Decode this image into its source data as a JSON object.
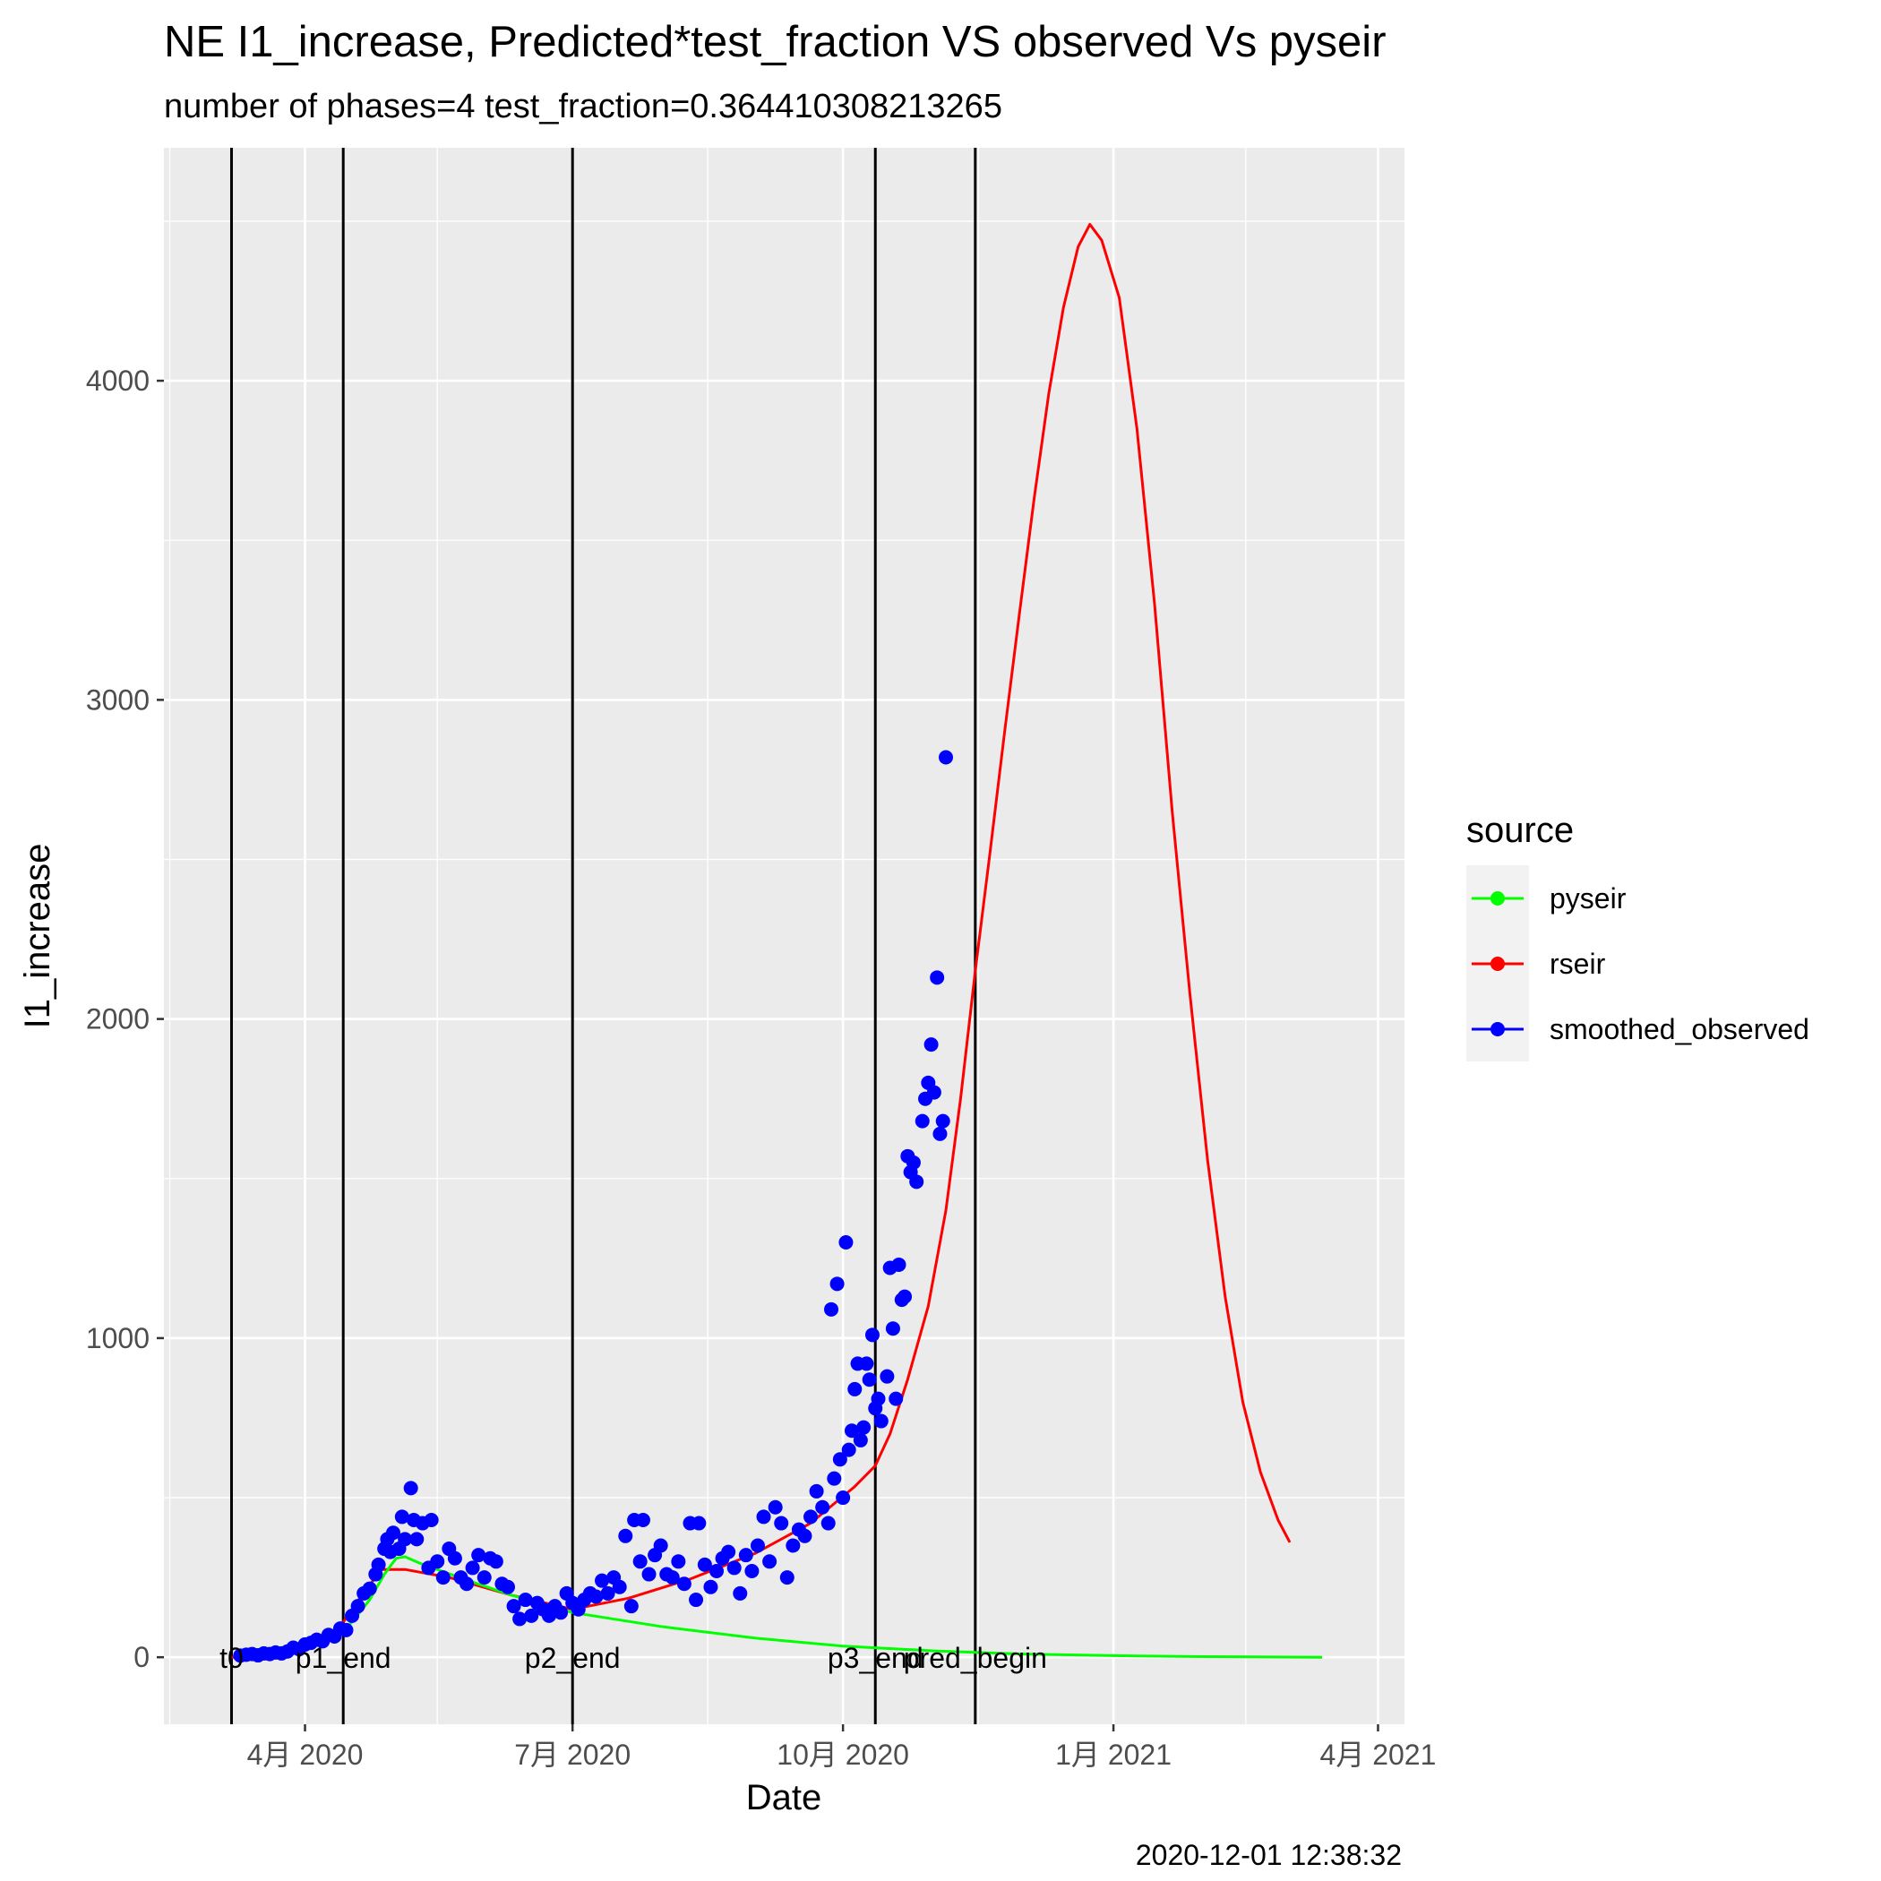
{
  "chart_data": {
    "type": "line",
    "title": "NE I1_increase, Predicted*test_fraction VS observed Vs pyseir",
    "subtitle": "number of phases=4   test_fraction=0.364410308213265",
    "xlabel": "Date",
    "ylabel": "I1_increase",
    "caption": "2020-12-01 12:38:32",
    "xlim": [
      "2020-02-13",
      "2021-04-10"
    ],
    "ylim": [
      -210,
      4730
    ],
    "x_ticks": [
      {
        "date": "2020-04-01",
        "label": "4月 2020"
      },
      {
        "date": "2020-07-01",
        "label": "7月 2020"
      },
      {
        "date": "2020-10-01",
        "label": "10月 2020"
      },
      {
        "date": "2021-01-01",
        "label": "1月 2021"
      },
      {
        "date": "2021-04-01",
        "label": "4月 2021"
      }
    ],
    "x_minor_ticks": [
      "2020-02-15",
      "2020-05-16",
      "2020-08-16",
      "2020-11-16",
      "2021-02-15"
    ],
    "y_ticks": [
      0,
      1000,
      2000,
      3000,
      4000
    ],
    "y_minor_ticks": [
      500,
      1500,
      2500,
      3500,
      4500
    ],
    "grid": true,
    "legend": {
      "title": "source",
      "position": "right",
      "entries": [
        {
          "label": "pyseir",
          "color": "#00ff00"
        },
        {
          "label": "rseir",
          "color": "#ff0000"
        },
        {
          "label": "smoothed_observed",
          "color": "#0000ff"
        }
      ]
    },
    "vlines": [
      {
        "date": "2020-03-07",
        "label": "t0"
      },
      {
        "date": "2020-04-14",
        "label": "p1_end"
      },
      {
        "date": "2020-07-01",
        "label": "p2_end"
      },
      {
        "date": "2020-10-12",
        "label": "p3_end"
      },
      {
        "date": "2020-11-15",
        "label": "pred_begin"
      }
    ],
    "series": [
      {
        "name": "rseir",
        "style": "line",
        "color": "#ff0000",
        "points": [
          [
            "2020-03-07",
            0
          ],
          [
            "2020-03-20",
            8
          ],
          [
            "2020-04-01",
            30
          ],
          [
            "2020-04-10",
            75
          ],
          [
            "2020-04-14",
            110
          ],
          [
            "2020-04-20",
            190
          ],
          [
            "2020-04-27",
            275
          ],
          [
            "2020-05-05",
            275
          ],
          [
            "2020-05-20",
            250
          ],
          [
            "2020-06-10",
            195
          ],
          [
            "2020-07-01",
            150
          ],
          [
            "2020-07-20",
            185
          ],
          [
            "2020-08-10",
            245
          ],
          [
            "2020-09-01",
            325
          ],
          [
            "2020-09-20",
            420
          ],
          [
            "2020-10-05",
            535
          ],
          [
            "2020-10-12",
            600
          ],
          [
            "2020-10-17",
            700
          ],
          [
            "2020-10-23",
            870
          ],
          [
            "2020-10-30",
            1100
          ],
          [
            "2020-11-05",
            1400
          ],
          [
            "2020-11-10",
            1750
          ],
          [
            "2020-11-15",
            2150
          ],
          [
            "2020-11-20",
            2520
          ],
          [
            "2020-11-25",
            2900
          ],
          [
            "2020-11-30",
            3270
          ],
          [
            "2020-12-05",
            3630
          ],
          [
            "2020-12-10",
            3960
          ],
          [
            "2020-12-15",
            4230
          ],
          [
            "2020-12-20",
            4420
          ],
          [
            "2020-12-24",
            4490
          ],
          [
            "2020-12-28",
            4440
          ],
          [
            "2021-01-03",
            4260
          ],
          [
            "2021-01-09",
            3850
          ],
          [
            "2021-01-15",
            3300
          ],
          [
            "2021-01-21",
            2650
          ],
          [
            "2021-01-27",
            2080
          ],
          [
            "2021-02-02",
            1560
          ],
          [
            "2021-02-08",
            1130
          ],
          [
            "2021-02-14",
            800
          ],
          [
            "2021-02-20",
            580
          ],
          [
            "2021-02-26",
            430
          ],
          [
            "2021-03-02",
            360
          ]
        ]
      },
      {
        "name": "pyseir",
        "style": "line",
        "color": "#00ff00",
        "points": [
          [
            "2020-03-20",
            5
          ],
          [
            "2020-04-01",
            30
          ],
          [
            "2020-04-10",
            60
          ],
          [
            "2020-04-17",
            110
          ],
          [
            "2020-04-23",
            180
          ],
          [
            "2020-04-28",
            260
          ],
          [
            "2020-05-02",
            310
          ],
          [
            "2020-05-05",
            315
          ],
          [
            "2020-05-10",
            295
          ],
          [
            "2020-05-25",
            245
          ],
          [
            "2020-06-10",
            195
          ],
          [
            "2020-07-01",
            140
          ],
          [
            "2020-08-01",
            95
          ],
          [
            "2020-09-01",
            60
          ],
          [
            "2020-10-01",
            35
          ],
          [
            "2020-11-01",
            20
          ],
          [
            "2020-12-01",
            10
          ],
          [
            "2021-01-01",
            5
          ],
          [
            "2021-02-01",
            2
          ],
          [
            "2021-03-13",
            0
          ]
        ]
      },
      {
        "name": "smoothed_observed",
        "style": "points",
        "color": "#0000ff",
        "points": [
          [
            "2020-03-10",
            5
          ],
          [
            "2020-03-12",
            8
          ],
          [
            "2020-03-14",
            10
          ],
          [
            "2020-03-16",
            6
          ],
          [
            "2020-03-18",
            12
          ],
          [
            "2020-03-20",
            10
          ],
          [
            "2020-03-22",
            15
          ],
          [
            "2020-03-24",
            12
          ],
          [
            "2020-03-26",
            18
          ],
          [
            "2020-03-28",
            30
          ],
          [
            "2020-03-30",
            25
          ],
          [
            "2020-04-01",
            40
          ],
          [
            "2020-04-03",
            45
          ],
          [
            "2020-04-05",
            55
          ],
          [
            "2020-04-07",
            50
          ],
          [
            "2020-04-09",
            70
          ],
          [
            "2020-04-11",
            65
          ],
          [
            "2020-04-13",
            90
          ],
          [
            "2020-04-15",
            85
          ],
          [
            "2020-04-17",
            130
          ],
          [
            "2020-04-19",
            160
          ],
          [
            "2020-04-21",
            200
          ],
          [
            "2020-04-23",
            215
          ],
          [
            "2020-04-25",
            260
          ],
          [
            "2020-04-26",
            290
          ],
          [
            "2020-04-28",
            340
          ],
          [
            "2020-04-29",
            370
          ],
          [
            "2020-04-30",
            330
          ],
          [
            "2020-05-01",
            390
          ],
          [
            "2020-05-03",
            340
          ],
          [
            "2020-05-04",
            440
          ],
          [
            "2020-05-05",
            370
          ],
          [
            "2020-05-07",
            530
          ],
          [
            "2020-05-08",
            430
          ],
          [
            "2020-05-09",
            370
          ],
          [
            "2020-05-11",
            420
          ],
          [
            "2020-05-13",
            280
          ],
          [
            "2020-05-14",
            430
          ],
          [
            "2020-05-16",
            300
          ],
          [
            "2020-05-18",
            250
          ],
          [
            "2020-05-20",
            340
          ],
          [
            "2020-05-22",
            310
          ],
          [
            "2020-05-24",
            250
          ],
          [
            "2020-05-26",
            230
          ],
          [
            "2020-05-28",
            280
          ],
          [
            "2020-05-30",
            320
          ],
          [
            "2020-06-01",
            250
          ],
          [
            "2020-06-03",
            310
          ],
          [
            "2020-06-05",
            300
          ],
          [
            "2020-06-07",
            230
          ],
          [
            "2020-06-09",
            220
          ],
          [
            "2020-06-11",
            160
          ],
          [
            "2020-06-13",
            120
          ],
          [
            "2020-06-15",
            180
          ],
          [
            "2020-06-17",
            130
          ],
          [
            "2020-06-19",
            170
          ],
          [
            "2020-06-21",
            150
          ],
          [
            "2020-06-23",
            130
          ],
          [
            "2020-06-25",
            160
          ],
          [
            "2020-06-27",
            140
          ],
          [
            "2020-06-29",
            200
          ],
          [
            "2020-07-01",
            170
          ],
          [
            "2020-07-03",
            150
          ],
          [
            "2020-07-05",
            180
          ],
          [
            "2020-07-07",
            200
          ],
          [
            "2020-07-09",
            190
          ],
          [
            "2020-07-11",
            240
          ],
          [
            "2020-07-13",
            200
          ],
          [
            "2020-07-15",
            250
          ],
          [
            "2020-07-17",
            220
          ],
          [
            "2020-07-19",
            380
          ],
          [
            "2020-07-21",
            160
          ],
          [
            "2020-07-22",
            430
          ],
          [
            "2020-07-24",
            300
          ],
          [
            "2020-07-25",
            430
          ],
          [
            "2020-07-27",
            260
          ],
          [
            "2020-07-29",
            320
          ],
          [
            "2020-07-31",
            350
          ],
          [
            "2020-08-02",
            260
          ],
          [
            "2020-08-04",
            250
          ],
          [
            "2020-08-06",
            300
          ],
          [
            "2020-08-08",
            230
          ],
          [
            "2020-08-10",
            420
          ],
          [
            "2020-08-12",
            180
          ],
          [
            "2020-08-13",
            420
          ],
          [
            "2020-08-15",
            290
          ],
          [
            "2020-08-17",
            220
          ],
          [
            "2020-08-19",
            270
          ],
          [
            "2020-08-21",
            310
          ],
          [
            "2020-08-23",
            330
          ],
          [
            "2020-08-25",
            280
          ],
          [
            "2020-08-27",
            200
          ],
          [
            "2020-08-29",
            320
          ],
          [
            "2020-08-31",
            270
          ],
          [
            "2020-09-02",
            350
          ],
          [
            "2020-09-04",
            440
          ],
          [
            "2020-09-06",
            300
          ],
          [
            "2020-09-08",
            470
          ],
          [
            "2020-09-10",
            420
          ],
          [
            "2020-09-12",
            250
          ],
          [
            "2020-09-14",
            350
          ],
          [
            "2020-09-16",
            400
          ],
          [
            "2020-09-18",
            380
          ],
          [
            "2020-09-20",
            440
          ],
          [
            "2020-09-22",
            520
          ],
          [
            "2020-09-24",
            470
          ],
          [
            "2020-09-26",
            420
          ],
          [
            "2020-09-27",
            1090
          ],
          [
            "2020-09-28",
            560
          ],
          [
            "2020-09-29",
            1170
          ],
          [
            "2020-09-30",
            620
          ],
          [
            "2020-10-01",
            500
          ],
          [
            "2020-10-02",
            1300
          ],
          [
            "2020-10-03",
            650
          ],
          [
            "2020-10-04",
            710
          ],
          [
            "2020-10-05",
            840
          ],
          [
            "2020-10-06",
            920
          ],
          [
            "2020-10-07",
            680
          ],
          [
            "2020-10-08",
            720
          ],
          [
            "2020-10-09",
            920
          ],
          [
            "2020-10-10",
            870
          ],
          [
            "2020-10-11",
            1010
          ],
          [
            "2020-10-12",
            780
          ],
          [
            "2020-10-13",
            810
          ],
          [
            "2020-10-14",
            740
          ],
          [
            "2020-10-16",
            880
          ],
          [
            "2020-10-17",
            1220
          ],
          [
            "2020-10-18",
            1030
          ],
          [
            "2020-10-19",
            810
          ],
          [
            "2020-10-20",
            1230
          ],
          [
            "2020-10-21",
            1120
          ],
          [
            "2020-10-22",
            1130
          ],
          [
            "2020-10-23",
            1570
          ],
          [
            "2020-10-24",
            1520
          ],
          [
            "2020-10-25",
            1550
          ],
          [
            "2020-10-26",
            1490
          ],
          [
            "2020-10-28",
            1680
          ],
          [
            "2020-10-29",
            1750
          ],
          [
            "2020-10-30",
            1800
          ],
          [
            "2020-10-31",
            1920
          ],
          [
            "2020-11-01",
            1770
          ],
          [
            "2020-11-02",
            2130
          ],
          [
            "2020-11-03",
            1640
          ],
          [
            "2020-11-04",
            1680
          ],
          [
            "2020-11-05",
            2820
          ]
        ]
      }
    ]
  }
}
